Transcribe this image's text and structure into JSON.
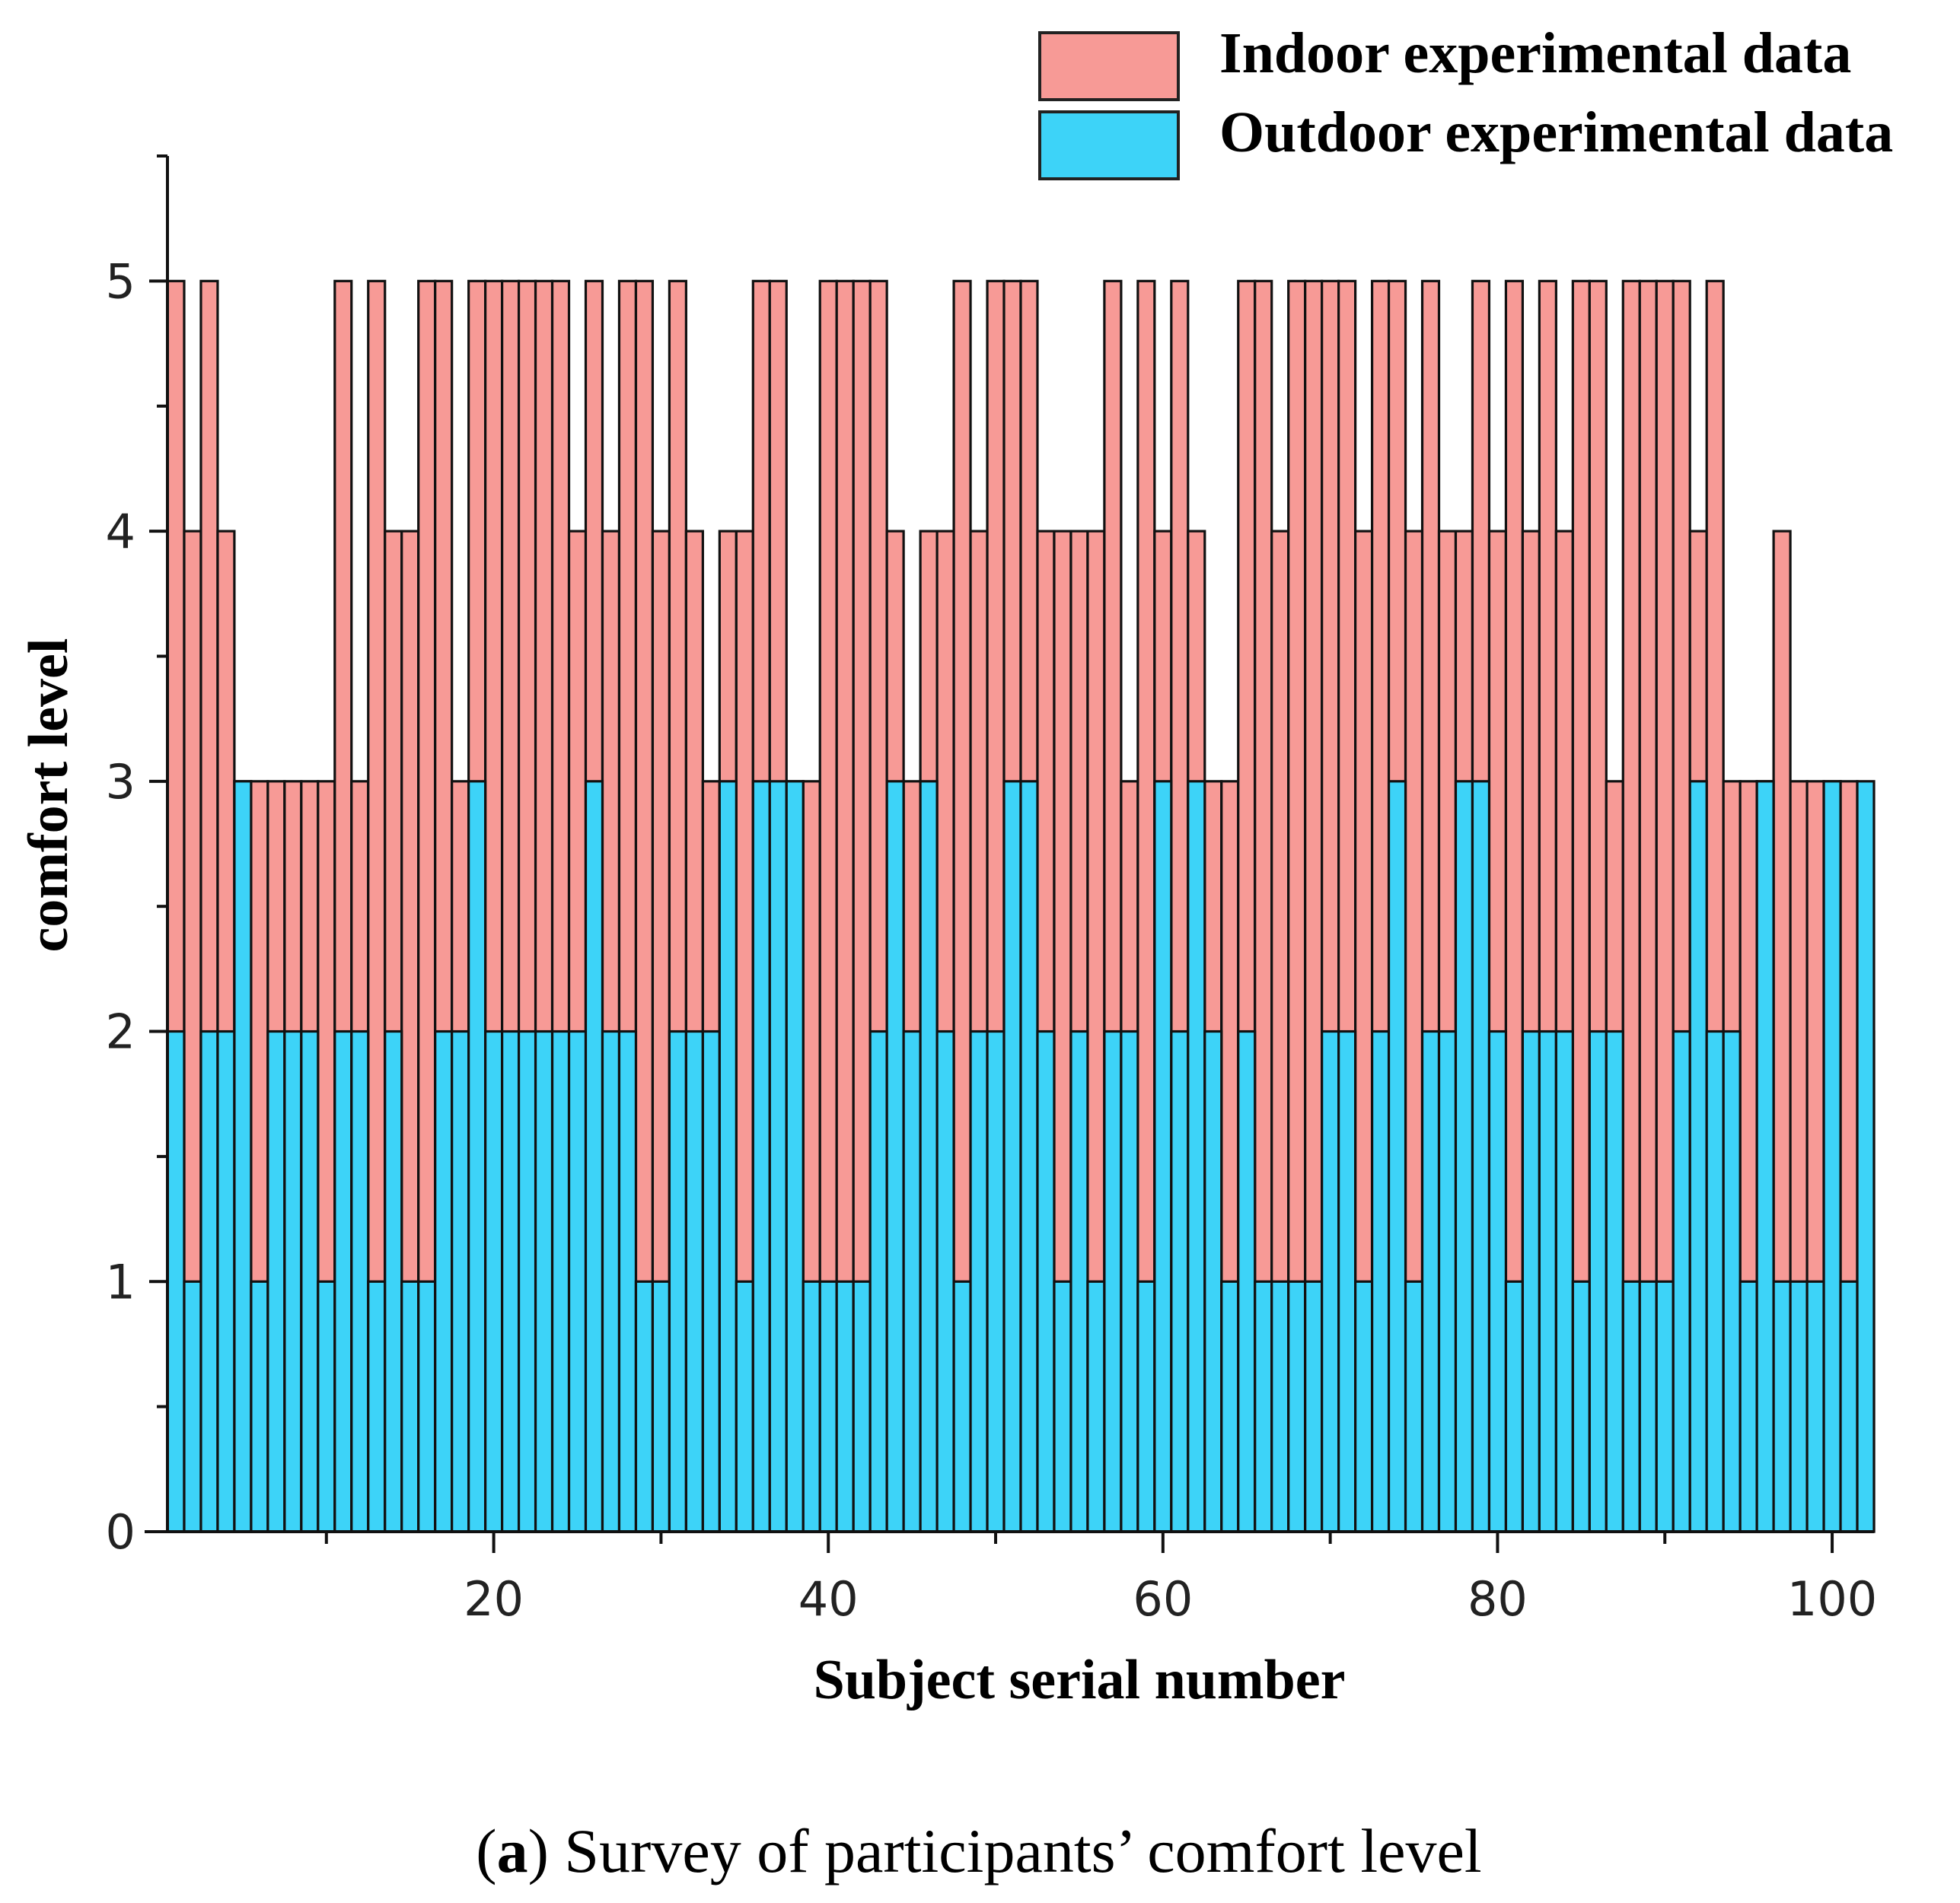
{
  "chart_data": {
    "type": "bar",
    "layout": "overlapping",
    "title": "",
    "xlabel": "Subject serial number",
    "ylabel": "comfort level",
    "xlim": [
      0.5,
      102.5
    ],
    "ylim": [
      0,
      5.5
    ],
    "xticks": [
      20,
      40,
      60,
      80,
      100
    ],
    "yticks": [
      0,
      1,
      2,
      3,
      4,
      5
    ],
    "legend_position": "top-right",
    "caption_label": "a",
    "caption_text": "Survey of participants’ comfort level",
    "series": [
      {
        "name": "Indoor experimental data",
        "color": "#F79A96",
        "values": [
          5,
          4,
          5,
          4,
          3,
          3,
          3,
          3,
          3,
          3,
          5,
          3,
          5,
          4,
          4,
          5,
          5,
          3,
          5,
          5,
          5,
          5,
          5,
          5,
          4,
          5,
          4,
          5,
          5,
          4,
          5,
          4,
          3,
          4,
          4,
          5,
          5,
          3,
          3,
          5,
          5,
          5,
          5,
          4,
          3,
          4,
          4,
          5,
          4,
          5,
          5,
          5,
          4,
          4,
          4,
          4,
          5,
          3,
          5,
          4,
          5,
          4,
          3,
          3,
          5,
          5,
          4,
          5,
          5,
          5,
          5,
          4,
          5,
          5,
          4,
          5,
          4,
          4,
          5,
          4,
          5,
          4,
          5,
          4,
          5,
          5,
          3,
          5,
          5,
          5,
          5,
          4,
          5,
          3,
          3,
          3,
          4,
          3,
          3,
          3,
          3,
          2
        ]
      },
      {
        "name": "Outdoor experimental data",
        "color": "#3DD3F8",
        "values": [
          2,
          1,
          2,
          2,
          3,
          1,
          2,
          2,
          2,
          1,
          2,
          2,
          1,
          2,
          1,
          1,
          2,
          2,
          3,
          2,
          2,
          2,
          2,
          2,
          2,
          3,
          2,
          2,
          1,
          1,
          2,
          2,
          2,
          3,
          1,
          3,
          3,
          3,
          1,
          1,
          1,
          1,
          2,
          3,
          2,
          3,
          2,
          1,
          2,
          2,
          3,
          3,
          2,
          1,
          2,
          1,
          2,
          2,
          1,
          3,
          2,
          3,
          2,
          1,
          2,
          1,
          1,
          1,
          1,
          2,
          2,
          1,
          2,
          3,
          1,
          2,
          2,
          3,
          3,
          2,
          1,
          2,
          2,
          2,
          1,
          2,
          2,
          1,
          1,
          1,
          2,
          3,
          2,
          2,
          1,
          3,
          1,
          1,
          1,
          3,
          1,
          3
        ]
      }
    ]
  }
}
